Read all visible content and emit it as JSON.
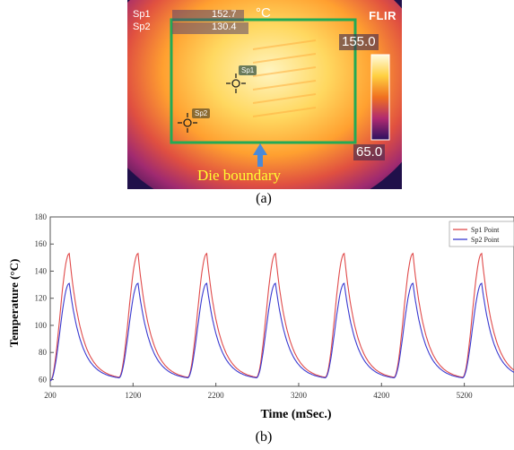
{
  "thermal": {
    "brand": "FLIR",
    "unit": "°C",
    "spots": [
      {
        "label": "Sp1",
        "value": "152.7"
      },
      {
        "label": "Sp2",
        "value": "130.4"
      }
    ],
    "scale_max": "155.0",
    "scale_min": "65.0",
    "boundary_label": "Die boundary",
    "colors": {
      "boundary": "#22aa55",
      "arrow": "#4a8ad8",
      "label": "#ffff33"
    }
  },
  "captions": {
    "a": "(a)",
    "b": "(b)"
  },
  "chart_data": {
    "type": "line",
    "xlabel": "Time (mSec.)",
    "ylabel": "Temperature (°C)",
    "xlim": [
      200,
      5800
    ],
    "ylim": [
      55,
      180
    ],
    "x_ticks": [
      200,
      1200,
      2200,
      3200,
      4200,
      5200
    ],
    "y_ticks": [
      60,
      80,
      100,
      120,
      140,
      160,
      180
    ],
    "legend_position": "top-right",
    "grid": false,
    "cycle_period": 830,
    "series": [
      {
        "name": "Sp1 Point",
        "color": "#e04a4a",
        "peaks": [
          {
            "x": 430,
            "y": 153
          },
          {
            "x": 1260,
            "y": 153
          },
          {
            "x": 2090,
            "y": 153
          },
          {
            "x": 2920,
            "y": 153
          },
          {
            "x": 3750,
            "y": 153
          },
          {
            "x": 4580,
            "y": 153
          },
          {
            "x": 5410,
            "y": 153
          }
        ],
        "troughs": [
          {
            "x": 200,
            "y": 59
          },
          {
            "x": 1030,
            "y": 60
          },
          {
            "x": 1860,
            "y": 60
          },
          {
            "x": 2690,
            "y": 60
          },
          {
            "x": 3520,
            "y": 60
          },
          {
            "x": 4350,
            "y": 60
          },
          {
            "x": 5180,
            "y": 60
          }
        ]
      },
      {
        "name": "Sp2 Point",
        "color": "#3a3ad0",
        "peaks": [
          {
            "x": 430,
            "y": 131
          },
          {
            "x": 1260,
            "y": 131
          },
          {
            "x": 2090,
            "y": 131
          },
          {
            "x": 2920,
            "y": 131
          },
          {
            "x": 3750,
            "y": 131
          },
          {
            "x": 4580,
            "y": 131
          },
          {
            "x": 5410,
            "y": 131
          }
        ],
        "troughs": [
          {
            "x": 200,
            "y": 59
          },
          {
            "x": 1030,
            "y": 60
          },
          {
            "x": 1860,
            "y": 60
          },
          {
            "x": 2690,
            "y": 60
          },
          {
            "x": 3520,
            "y": 60
          },
          {
            "x": 4350,
            "y": 60
          },
          {
            "x": 5180,
            "y": 60
          }
        ]
      }
    ]
  }
}
